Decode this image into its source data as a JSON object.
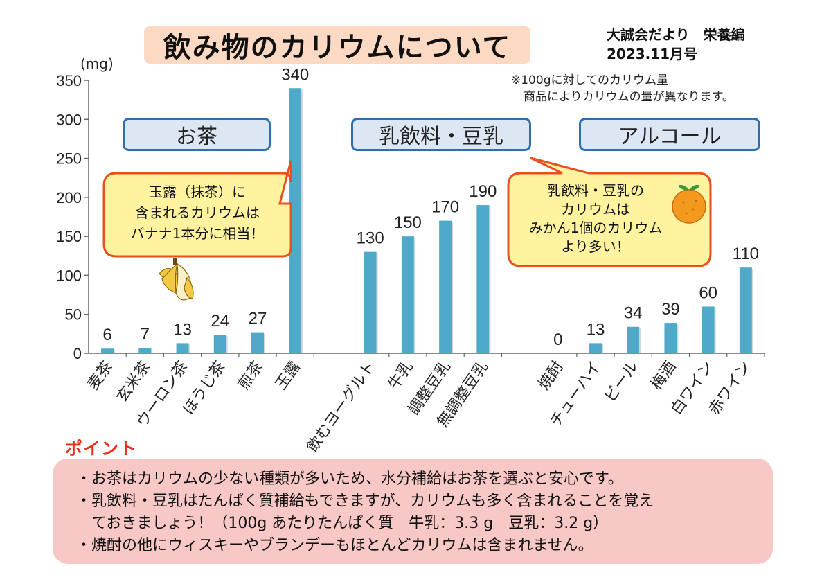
{
  "header": {
    "title": "飲み物のカリウムについて",
    "newsletter_line1": "大誠会だより　栄養編",
    "newsletter_line2": "2023.11月号"
  },
  "note": {
    "line1": "※100gに対してのカリウム量",
    "line2": "商品によりカリウムの量が異なります。"
  },
  "category_boxes": {
    "tea": "お茶",
    "dairy": "乳飲料・豆乳",
    "alcohol": "アルコール"
  },
  "callouts": {
    "tea": [
      "玉露（抹茶）に",
      "含まれるカリウムは",
      "バナナ1本分に相当！"
    ],
    "dairy": [
      "乳飲料・豆乳の",
      "カリウムは",
      "みかん1個のカリウム",
      "より多い！"
    ]
  },
  "chart_data": {
    "type": "bar",
    "title": "飲み物のカリウムについて",
    "ylabel": "(mg)",
    "xlabel": "",
    "ylim": [
      0,
      350
    ],
    "yticks": [
      0,
      50,
      100,
      150,
      200,
      250,
      300,
      350
    ],
    "grid": false,
    "bar_color": "#4eaac8",
    "categories": [
      "麦茶",
      "玄米茶",
      "ウーロン茶",
      "ほうじ茶",
      "煎茶",
      "玉露",
      "飲むヨーグルト",
      "牛乳",
      "調整豆乳",
      "無調整豆乳",
      "焼酎",
      "チューハイ",
      "ビール",
      "梅酒",
      "白ワイン",
      "赤ワイン"
    ],
    "values": [
      6,
      7,
      13,
      24,
      27,
      340,
      130,
      150,
      170,
      190,
      0,
      13,
      34,
      39,
      60,
      110
    ],
    "groups": [
      {
        "name": "お茶",
        "count": 6
      },
      {
        "name": "乳飲料・豆乳",
        "count": 4
      },
      {
        "name": "アルコール",
        "count": 6
      }
    ]
  },
  "points": {
    "title": "ポイント",
    "lines": [
      "・お茶はカリウムの少ない種類が多いため、水分補給はお茶を選ぶと安心です。",
      "・乳飲料・豆乳はたんぱく質補給もできますが、カリウムも多く含まれることを覚え",
      "ておきましょう！（100g あたりたんぱく質　牛乳：3.3 g　豆乳：3.2 g）",
      "・焼酎の他にウィスキーやブランデーもほとんどカリウムは含まれません。"
    ]
  },
  "colors": {
    "title_bg": "#fbd9c3",
    "category_border": "#2f6fad",
    "category_bg": "#dce7f3",
    "callout_bg": "#fff3a0",
    "callout_border": "#e8501e",
    "point_bg": "#f8c8c6",
    "point_title": "#e8321e"
  }
}
